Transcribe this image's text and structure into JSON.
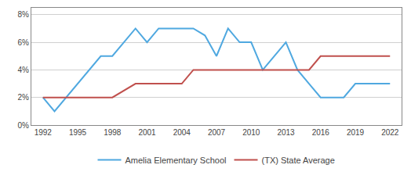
{
  "chart_data": {
    "type": "line",
    "series": [
      {
        "name": "Amelia Elementary School",
        "color": "#4fa8e0",
        "x": [
          1992,
          1993,
          1997,
          1998,
          2000,
          2001,
          2002,
          2003,
          2004,
          2005,
          2006,
          2007,
          2008,
          2009,
          2010,
          2011,
          2013,
          2014,
          2015,
          2016,
          2017,
          2018,
          2019,
          2020,
          2022
        ],
        "values": [
          2.0,
          1.0,
          5.0,
          5.0,
          7.0,
          6.0,
          7.0,
          7.0,
          7.0,
          7.0,
          6.5,
          5.0,
          7.0,
          6.0,
          6.0,
          4.0,
          6.0,
          4.0,
          3.0,
          2.0,
          2.0,
          2.0,
          3.0,
          3.0,
          3.0
        ]
      },
      {
        "name": "(TX) State Average",
        "color": "#c0504d",
        "x": [
          1992,
          1993,
          1997,
          1998,
          2000,
          2001,
          2002,
          2003,
          2004,
          2005,
          2006,
          2007,
          2008,
          2009,
          2010,
          2011,
          2013,
          2014,
          2015,
          2016,
          2017,
          2018,
          2019,
          2020,
          2022
        ],
        "values": [
          2.0,
          2.0,
          2.0,
          2.0,
          3.0,
          3.0,
          3.0,
          3.0,
          3.0,
          4.0,
          4.0,
          4.0,
          4.0,
          4.0,
          4.0,
          4.0,
          4.0,
          4.0,
          4.0,
          5.0,
          5.0,
          5.0,
          5.0,
          5.0,
          5.0
        ]
      }
    ],
    "xlim": [
      1991.0,
      2023.0
    ],
    "xticks": [
      1992,
      1995,
      1998,
      2001,
      2004,
      2007,
      2010,
      2013,
      2016,
      2019,
      2022
    ],
    "ylim": [
      0,
      8.5
    ],
    "yticks": [
      {
        "value": 0,
        "label": "0%"
      },
      {
        "value": 2,
        "label": "2%"
      },
      {
        "value": 4,
        "label": "4%"
      },
      {
        "value": 6,
        "label": "6%"
      },
      {
        "value": 8,
        "label": "8%"
      }
    ],
    "grid": true,
    "legend": "bottom"
  }
}
